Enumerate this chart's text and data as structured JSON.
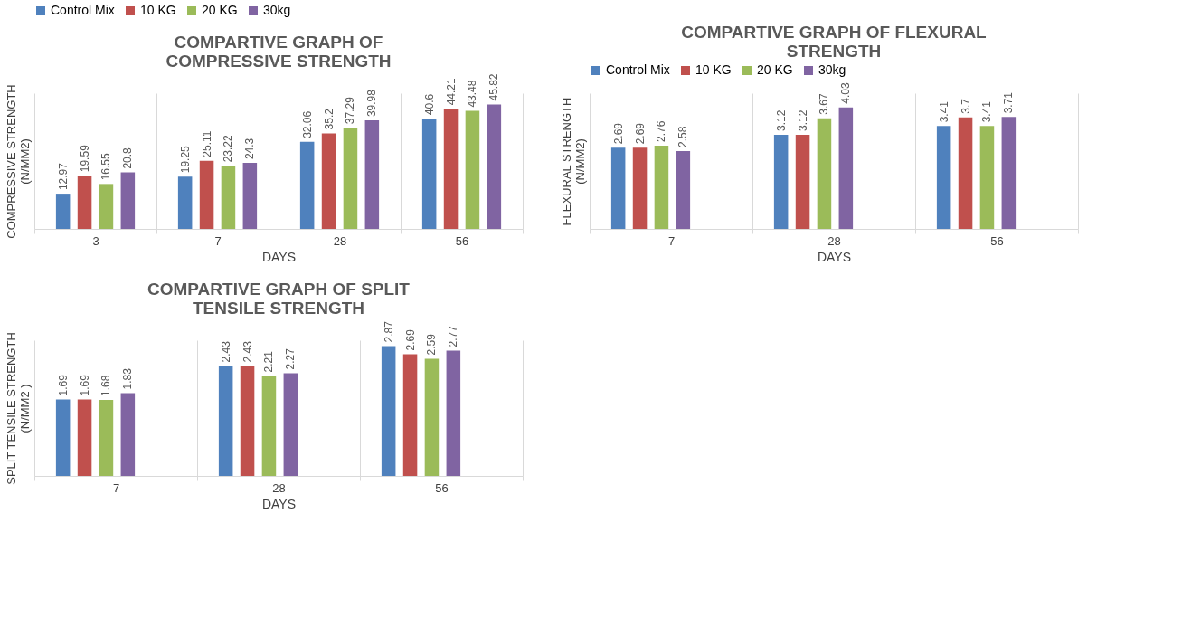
{
  "chart_data": [
    {
      "type": "bar",
      "title": "COMPARTIVE GRAPH OF COMPRESSIVE STRENGTH",
      "xlabel": "DAYS",
      "ylabel": "COMPRESSIVE STRENGTH (N/MM2)",
      "categories": [
        "3",
        "7",
        "28",
        "56"
      ],
      "legend": "top",
      "grid": "x",
      "data_labels": true,
      "tick_labels": "x",
      "series": [
        {
          "name": "Control Mix",
          "color": "#4f81bd",
          "values": [
            12.97,
            19.25,
            32.06,
            40.6
          ]
        },
        {
          "name": "10 KG",
          "color": "#c0504d",
          "values": [
            19.59,
            25.11,
            35.2,
            44.21
          ]
        },
        {
          "name": "20 KG",
          "color": "#9bbb59",
          "values": [
            16.55,
            23.22,
            37.29,
            43.48
          ]
        },
        {
          "name": "30kg",
          "color": "#8064a2",
          "values": [
            20.8,
            24.3,
            39.98,
            45.82
          ]
        }
      ]
    },
    {
      "type": "bar",
      "title": "COMPARTIVE GRAPH OF SPLIT TENSILE STRENGTH",
      "xlabel": "DAYS",
      "ylabel": "SPLIT TENSILE STRENGTH (N/MM2 )",
      "categories": [
        "7",
        "28",
        "56"
      ],
      "legend": "top",
      "grid": "x",
      "data_labels": true,
      "tick_labels": "x",
      "series": [
        {
          "name": "Control Mix",
          "color": "#4f81bd",
          "values": [
            1.69,
            2.43,
            2.87
          ]
        },
        {
          "name": "10 KG",
          "color": "#c0504d",
          "values": [
            1.69,
            2.43,
            2.69
          ]
        },
        {
          "name": "20 KG",
          "color": "#9bbb59",
          "values": [
            1.68,
            2.21,
            2.59
          ]
        },
        {
          "name": "30kg",
          "color": "#8064a2",
          "values": [
            1.83,
            2.27,
            2.77
          ]
        }
      ]
    },
    {
      "type": "bar",
      "title": "COMPARTIVE GRAPH OF FLEXURAL STRENGTH",
      "xlabel": "DAYS",
      "ylabel": "FLEXURAL STRENGTH (N/MM2)",
      "categories": [
        "7",
        "28",
        "56"
      ],
      "legend": "top",
      "grid": "x",
      "data_labels": true,
      "tick_labels": "x",
      "series": [
        {
          "name": "Control Mix",
          "color": "#4f81bd",
          "values": [
            2.69,
            3.12,
            3.41
          ]
        },
        {
          "name": "10 KG",
          "color": "#c0504d",
          "values": [
            2.69,
            3.12,
            3.7
          ]
        },
        {
          "name": "20 KG",
          "color": "#9bbb59",
          "values": [
            2.76,
            3.67,
            3.41
          ]
        },
        {
          "name": "30kg",
          "color": "#8064a2",
          "values": [
            2.58,
            4.03,
            3.71
          ]
        }
      ]
    }
  ]
}
